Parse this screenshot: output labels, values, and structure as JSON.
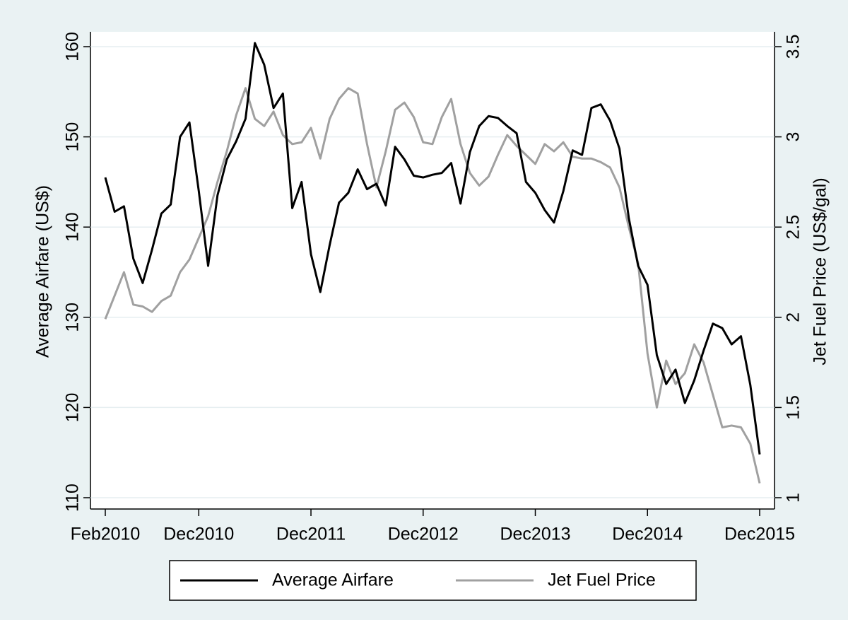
{
  "chart_data": {
    "type": "line",
    "categories": [
      "Feb2010",
      null,
      null,
      null,
      null,
      null,
      null,
      null,
      null,
      null,
      "Dec2010",
      null,
      null,
      null,
      null,
      null,
      null,
      null,
      null,
      null,
      null,
      null,
      "Dec2011",
      null,
      null,
      null,
      null,
      null,
      null,
      null,
      null,
      null,
      null,
      null,
      "Dec2012",
      null,
      null,
      null,
      null,
      null,
      null,
      null,
      null,
      null,
      null,
      null,
      "Dec2013",
      null,
      null,
      null,
      null,
      null,
      null,
      null,
      null,
      null,
      null,
      null,
      "Dec2014",
      null,
      null,
      null,
      null,
      null,
      null,
      null,
      null,
      null,
      null,
      null,
      "Dec2015"
    ],
    "y_label": "Average Airfare (US$)",
    "y2_label": "Jet Fuel Price (US$/gal)",
    "ylim": [
      110,
      160
    ],
    "yticks": [
      110,
      120,
      130,
      140,
      150,
      160
    ],
    "y2lim": [
      1,
      3.5
    ],
    "y2ticks": [
      1,
      1.5,
      2,
      2.5,
      3,
      3.5
    ],
    "grid": true,
    "legend": "bottom",
    "series": [
      {
        "name": "Average Airfare",
        "color": "#000000",
        "values": [
          145.5,
          141.7,
          142.3,
          136.5,
          133.8,
          137.5,
          141.5,
          142.5,
          150.0,
          151.6,
          144,
          135.7,
          143.5,
          147.5,
          149.5,
          152,
          160.4,
          158,
          153.2,
          154.8,
          142.1,
          145,
          137,
          132.8,
          138,
          142.7,
          143.8,
          146.4,
          144.2,
          144.8,
          142.4,
          148.9,
          147.5,
          145.7,
          145.5,
          145.8,
          146,
          147.1,
          142.6,
          148.3,
          151.2,
          152.3,
          152.1,
          151.2,
          150.4,
          145,
          143.8,
          141.9,
          140.5,
          144,
          148.5,
          148,
          153.2,
          153.6,
          151.8,
          148.7,
          141,
          135.7,
          133.6,
          125.8,
          122.6,
          124.2,
          120.5,
          123,
          126.3,
          129.3,
          128.8,
          127,
          127.9,
          122.5,
          114.8
        ]
      },
      {
        "name": "Jet Fuel Price",
        "color": "#a0a0a0",
        "axis": "y2",
        "values": [
          1.99,
          2.12,
          2.25,
          2.07,
          2.06,
          2.03,
          2.09,
          2.12,
          2.25,
          2.32,
          2.44,
          2.56,
          2.75,
          2.92,
          3.12,
          3.27,
          3.1,
          3.06,
          3.14,
          3.01,
          2.96,
          2.97,
          3.05,
          2.88,
          3.1,
          3.21,
          3.27,
          3.24,
          2.96,
          2.72,
          2.92,
          3.15,
          3.19,
          3.11,
          2.97,
          2.96,
          3.11,
          3.21,
          2.96,
          2.8,
          2.73,
          2.78,
          2.9,
          3.01,
          2.95,
          2.9,
          2.85,
          2.96,
          2.92,
          2.97,
          2.89,
          2.88,
          2.88,
          2.86,
          2.83,
          2.72,
          2.5,
          2.3,
          1.8,
          1.5,
          1.76,
          1.63,
          1.69,
          1.85,
          1.75,
          1.57,
          1.39,
          1.4,
          1.39,
          1.3,
          1.08
        ]
      }
    ]
  }
}
